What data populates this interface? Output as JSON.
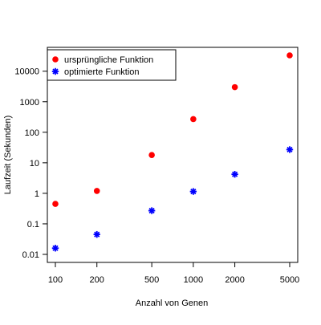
{
  "chart_data": {
    "type": "scatter",
    "xscale": "log",
    "yscale": "log",
    "xlabel": "Anzahl von Genen",
    "ylabel": "Laufzeit (Sekunden)",
    "title": "",
    "xlim": [
      100,
      5000
    ],
    "ylim": [
      0.01,
      33000
    ],
    "grid": false,
    "legend_position": "top-left",
    "x_ticks": [
      {
        "value": 100,
        "label": "100"
      },
      {
        "value": 200,
        "label": "200"
      },
      {
        "value": 500,
        "label": "500"
      },
      {
        "value": 1000,
        "label": "1000"
      },
      {
        "value": 2000,
        "label": "2000"
      },
      {
        "value": 5000,
        "label": "5000"
      }
    ],
    "y_ticks": [
      {
        "value": 0.01,
        "label": "0.01"
      },
      {
        "value": 0.1,
        "label": "0.1"
      },
      {
        "value": 1,
        "label": "1"
      },
      {
        "value": 10,
        "label": "10"
      },
      {
        "value": 100,
        "label": "100"
      },
      {
        "value": 1000,
        "label": "1000"
      },
      {
        "value": 10000,
        "label": "10000"
      }
    ],
    "series": [
      {
        "name": "ursprüngliche Funktion",
        "legend_text": "ursprüngliche Funktion",
        "marker": "circle",
        "color": "#ff0000",
        "x": [
          100,
          200,
          500,
          1000,
          2000,
          5000
        ],
        "y": [
          0.45,
          1.2,
          18,
          270,
          3000,
          33000
        ]
      },
      {
        "name": "optimierte Funktion",
        "legend_text": "optimierte Funktion",
        "marker": "asterisk",
        "color": "#0000ff",
        "x": [
          100,
          200,
          500,
          1000,
          2000,
          5000
        ],
        "y": [
          0.016,
          0.045,
          0.27,
          1.15,
          4.2,
          27
        ]
      }
    ]
  }
}
